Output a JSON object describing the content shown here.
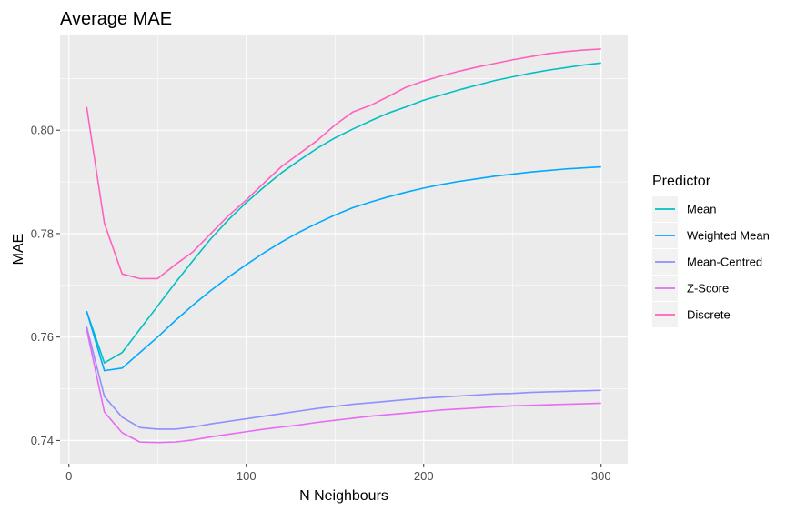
{
  "chart_data": {
    "type": "line",
    "title": "Average MAE",
    "xlabel": "N Neighbours",
    "ylabel": "MAE",
    "xlim": [
      -5,
      315
    ],
    "ylim": [
      0.7355,
      0.8185
    ],
    "x_ticks": [
      0,
      100,
      200,
      300
    ],
    "x_tick_labels": [
      "0",
      "100",
      "200",
      "300"
    ],
    "y_ticks": [
      0.74,
      0.76,
      0.78,
      0.8
    ],
    "y_tick_labels": [
      "0.74",
      "0.76",
      "0.78",
      "0.80"
    ],
    "grid": true,
    "legend": {
      "title": "Predictor",
      "position": "right"
    },
    "x": [
      10,
      20,
      30,
      40,
      50,
      60,
      70,
      80,
      90,
      100,
      110,
      120,
      130,
      140,
      150,
      160,
      170,
      180,
      190,
      200,
      210,
      220,
      230,
      240,
      250,
      260,
      270,
      280,
      290,
      300
    ],
    "series": [
      {
        "name": "Mean",
        "color": "#00BFC4",
        "values": [
          0.765,
          0.755,
          0.757,
          0.7615,
          0.766,
          0.7705,
          0.7748,
          0.779,
          0.7827,
          0.786,
          0.789,
          0.7918,
          0.7942,
          0.7965,
          0.7985,
          0.8002,
          0.8018,
          0.8033,
          0.8045,
          0.8058,
          0.8068,
          0.8078,
          0.8087,
          0.8096,
          0.8103,
          0.811,
          0.8116,
          0.8121,
          0.8126,
          0.813
        ]
      },
      {
        "name": "Weighted Mean",
        "color": "#00A9FF",
        "values": [
          0.765,
          0.7535,
          0.754,
          0.757,
          0.76,
          0.7632,
          0.7662,
          0.769,
          0.7716,
          0.774,
          0.7763,
          0.7784,
          0.7803,
          0.782,
          0.7836,
          0.785,
          0.7861,
          0.7871,
          0.788,
          0.7888,
          0.7895,
          0.7901,
          0.7906,
          0.7911,
          0.7915,
          0.7919,
          0.7922,
          0.7925,
          0.7927,
          0.7929
        ]
      },
      {
        "name": "Mean-Centred",
        "color": "#8F8FFF",
        "values": [
          0.762,
          0.7485,
          0.7445,
          0.7425,
          0.7422,
          0.7422,
          0.7426,
          0.7432,
          0.7437,
          0.7442,
          0.7447,
          0.7452,
          0.7457,
          0.7462,
          0.7466,
          0.747,
          0.7473,
          0.7476,
          0.7479,
          0.7482,
          0.7484,
          0.7486,
          0.7488,
          0.749,
          0.7491,
          0.7493,
          0.7494,
          0.7495,
          0.7496,
          0.7497
        ]
      },
      {
        "name": "Z-Score",
        "color": "#E76BF3",
        "values": [
          0.7615,
          0.7455,
          0.7415,
          0.7397,
          0.7396,
          0.7397,
          0.7401,
          0.7407,
          0.7412,
          0.7417,
          0.7422,
          0.7426,
          0.743,
          0.7435,
          0.7439,
          0.7443,
          0.7447,
          0.745,
          0.7453,
          0.7456,
          0.7459,
          0.7461,
          0.7463,
          0.7465,
          0.7467,
          0.7468,
          0.7469,
          0.747,
          0.7471,
          0.7472
        ]
      },
      {
        "name": "Discrete",
        "color": "#FF62BC",
        "values": [
          0.8045,
          0.782,
          0.7722,
          0.7713,
          0.7713,
          0.774,
          0.7765,
          0.78,
          0.7835,
          0.7865,
          0.7898,
          0.793,
          0.7955,
          0.798,
          0.801,
          0.8035,
          0.8048,
          0.8065,
          0.8083,
          0.8095,
          0.8105,
          0.8114,
          0.8122,
          0.8129,
          0.8136,
          0.8142,
          0.8148,
          0.8152,
          0.8155,
          0.8157
        ]
      }
    ]
  }
}
